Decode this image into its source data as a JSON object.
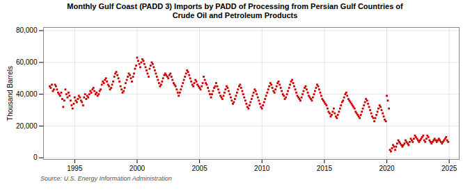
{
  "chart_data": {
    "type": "scatter",
    "title": "Monthly Gulf Coast (PADD 3) Imports by PADD of Processing from Persian Gulf Countries of\nCrude Oil and Petroleum Products",
    "ylabel": "Thousand Barrels",
    "annotations": [
      "Source: U.S. Energy Information Administration"
    ],
    "color": "#CC0000",
    "marker": "square",
    "grid": true,
    "xlim": [
      1992.5,
      2025.8
    ],
    "ylim": [
      -1000,
      82000
    ],
    "xticks": [
      1995,
      2000,
      2005,
      2010,
      2015,
      2020,
      2025
    ],
    "yticks": [
      0,
      {
        "value": 20000,
        "label": "20,000"
      },
      {
        "value": 40000,
        "label": "40,000"
      },
      {
        "value": 60000,
        "label": "60,000"
      },
      {
        "value": 80000,
        "label": "80,000"
      }
    ],
    "x": [
      1993.0,
      1993.08,
      1993.17,
      1993.25,
      1993.33,
      1993.42,
      1993.5,
      1993.58,
      1993.67,
      1993.75,
      1993.83,
      1993.92,
      1994.0,
      1994.08,
      1994.17,
      1994.25,
      1994.33,
      1994.42,
      1994.5,
      1994.58,
      1994.67,
      1994.75,
      1994.83,
      1994.92,
      1995.0,
      1995.08,
      1995.17,
      1995.25,
      1995.33,
      1995.42,
      1995.5,
      1995.58,
      1995.67,
      1995.75,
      1995.83,
      1995.92,
      1996.0,
      1996.08,
      1996.17,
      1996.25,
      1996.33,
      1996.42,
      1996.5,
      1996.58,
      1996.67,
      1996.75,
      1996.83,
      1996.92,
      1997.0,
      1997.08,
      1997.17,
      1997.25,
      1997.33,
      1997.42,
      1997.5,
      1997.58,
      1997.67,
      1997.75,
      1997.83,
      1997.92,
      1998.0,
      1998.08,
      1998.17,
      1998.25,
      1998.33,
      1998.42,
      1998.5,
      1998.58,
      1998.67,
      1998.75,
      1998.83,
      1998.92,
      1999.0,
      1999.08,
      1999.17,
      1999.25,
      1999.33,
      1999.42,
      1999.5,
      1999.58,
      1999.67,
      1999.75,
      1999.83,
      1999.92,
      2000.0,
      2000.08,
      2000.17,
      2000.25,
      2000.33,
      2000.42,
      2000.5,
      2000.58,
      2000.67,
      2000.75,
      2000.83,
      2000.92,
      2001.0,
      2001.08,
      2001.17,
      2001.25,
      2001.33,
      2001.42,
      2001.5,
      2001.58,
      2001.67,
      2001.75,
      2001.83,
      2001.92,
      2002.0,
      2002.08,
      2002.17,
      2002.25,
      2002.33,
      2002.42,
      2002.5,
      2002.58,
      2002.67,
      2002.75,
      2002.83,
      2002.92,
      2003.0,
      2003.08,
      2003.17,
      2003.25,
      2003.33,
      2003.42,
      2003.5,
      2003.58,
      2003.67,
      2003.75,
      2003.83,
      2003.92,
      2004.0,
      2004.08,
      2004.17,
      2004.25,
      2004.33,
      2004.42,
      2004.5,
      2004.58,
      2004.67,
      2004.75,
      2004.83,
      2004.92,
      2005.0,
      2005.08,
      2005.17,
      2005.25,
      2005.33,
      2005.42,
      2005.5,
      2005.58,
      2005.67,
      2005.75,
      2005.83,
      2005.92,
      2006.0,
      2006.08,
      2006.17,
      2006.25,
      2006.33,
      2006.42,
      2006.5,
      2006.58,
      2006.67,
      2006.75,
      2006.83,
      2006.92,
      2007.0,
      2007.08,
      2007.17,
      2007.25,
      2007.33,
      2007.42,
      2007.5,
      2007.58,
      2007.67,
      2007.75,
      2007.83,
      2007.92,
      2008.0,
      2008.08,
      2008.17,
      2008.25,
      2008.33,
      2008.42,
      2008.5,
      2008.58,
      2008.67,
      2008.75,
      2008.83,
      2008.92,
      2009.0,
      2009.08,
      2009.17,
      2009.25,
      2009.33,
      2009.42,
      2009.5,
      2009.58,
      2009.67,
      2009.75,
      2009.83,
      2009.92,
      2010.0,
      2010.08,
      2010.17,
      2010.25,
      2010.33,
      2010.42,
      2010.5,
      2010.58,
      2010.67,
      2010.75,
      2010.83,
      2010.92,
      2011.0,
      2011.08,
      2011.17,
      2011.25,
      2011.33,
      2011.42,
      2011.5,
      2011.58,
      2011.67,
      2011.75,
      2011.83,
      2011.92,
      2012.0,
      2012.08,
      2012.17,
      2012.25,
      2012.33,
      2012.42,
      2012.5,
      2012.58,
      2012.67,
      2012.75,
      2012.83,
      2012.92,
      2013.0,
      2013.08,
      2013.17,
      2013.25,
      2013.33,
      2013.42,
      2013.5,
      2013.58,
      2013.67,
      2013.75,
      2013.83,
      2013.92,
      2014.0,
      2014.08,
      2014.17,
      2014.25,
      2014.33,
      2014.42,
      2014.5,
      2014.58,
      2014.67,
      2014.75,
      2014.83,
      2014.92,
      2015.0,
      2015.08,
      2015.17,
      2015.25,
      2015.33,
      2015.42,
      2015.5,
      2015.58,
      2015.67,
      2015.75,
      2015.83,
      2015.92,
      2016.0,
      2016.08,
      2016.17,
      2016.25,
      2016.33,
      2016.42,
      2016.5,
      2016.58,
      2016.67,
      2016.75,
      2016.83,
      2016.92,
      2017.0,
      2017.08,
      2017.17,
      2017.25,
      2017.33,
      2017.42,
      2017.5,
      2017.58,
      2017.67,
      2017.75,
      2017.83,
      2017.92,
      2018.0,
      2018.08,
      2018.17,
      2018.25,
      2018.33,
      2018.42,
      2018.5,
      2018.58,
      2018.67,
      2018.75,
      2018.83,
      2018.92,
      2019.0,
      2019.08,
      2019.17,
      2019.25,
      2019.33,
      2019.42,
      2019.5,
      2019.58,
      2019.67,
      2019.75,
      2019.83,
      2019.92,
      2020.0,
      2020.08,
      2020.17,
      2020.25,
      2020.33,
      2020.42,
      2020.5,
      2020.58,
      2020.67,
      2020.75,
      2020.83,
      2020.92,
      2021.0,
      2021.08,
      2021.17,
      2021.25,
      2021.33,
      2021.42,
      2021.5,
      2021.58,
      2021.67,
      2021.75,
      2021.83,
      2021.92,
      2022.0,
      2022.08,
      2022.17,
      2022.25,
      2022.33,
      2022.42,
      2022.5,
      2022.58,
      2022.67,
      2022.75,
      2022.83,
      2022.92,
      2023.0,
      2023.08,
      2023.17,
      2023.25,
      2023.33,
      2023.42,
      2023.5,
      2023.58,
      2023.67,
      2023.75,
      2023.83,
      2023.92,
      2024.0,
      2024.08,
      2024.17,
      2024.25,
      2024.33,
      2024.42,
      2024.5,
      2024.58,
      2024.67,
      2024.75,
      2024.83,
      2024.92
    ],
    "values": [
      45000,
      44000,
      46000,
      42000,
      43000,
      46000,
      45000,
      43000,
      41000,
      40000,
      39000,
      41000,
      37000,
      32000,
      36000,
      43000,
      40000,
      38000,
      41000,
      39000,
      36000,
      33000,
      31000,
      34000,
      38000,
      36000,
      35000,
      37000,
      39000,
      38000,
      36000,
      35000,
      33000,
      38000,
      40000,
      37000,
      39000,
      38000,
      40000,
      42000,
      41000,
      43000,
      44000,
      42000,
      40000,
      41000,
      39000,
      40000,
      42000,
      43000,
      46000,
      48000,
      47000,
      49000,
      50000,
      48000,
      46000,
      45000,
      43000,
      44000,
      46000,
      48000,
      51000,
      53000,
      54000,
      52000,
      50000,
      48000,
      45000,
      43000,
      41000,
      42000,
      44000,
      47000,
      49000,
      51000,
      53000,
      52000,
      50000,
      48000,
      51000,
      53000,
      56000,
      58000,
      63000,
      61000,
      59000,
      57000,
      60000,
      62000,
      61000,
      59000,
      57000,
      55000,
      53000,
      51000,
      56000,
      58000,
      60000,
      59000,
      57000,
      55000,
      53000,
      51000,
      49000,
      47000,
      45000,
      46000,
      48000,
      50000,
      52000,
      53000,
      52000,
      51000,
      50000,
      52000,
      53000,
      51000,
      49000,
      47000,
      46000,
      45000,
      43000,
      41000,
      39000,
      41000,
      43000,
      45000,
      47000,
      49000,
      51000,
      53000,
      55000,
      54000,
      52000,
      50000,
      48000,
      46000,
      45000,
      47000,
      49000,
      48000,
      46000,
      45000,
      44000,
      43000,
      45000,
      47000,
      51000,
      49000,
      47000,
      46000,
      44000,
      42000,
      40000,
      38000,
      40000,
      42000,
      44000,
      45000,
      47000,
      45000,
      43000,
      41000,
      39000,
      38000,
      37000,
      39000,
      41000,
      43000,
      45000,
      44000,
      42000,
      40000,
      38000,
      36000,
      34000,
      35000,
      37000,
      39000,
      41000,
      43000,
      45000,
      46000,
      44000,
      42000,
      40000,
      38000,
      36000,
      34000,
      32000,
      31000,
      33000,
      35000,
      37000,
      39000,
      41000,
      43000,
      42000,
      40000,
      38000,
      36000,
      34000,
      32000,
      31000,
      33000,
      35000,
      37000,
      39000,
      41000,
      43000,
      45000,
      47000,
      46000,
      44000,
      42000,
      41000,
      43000,
      45000,
      47000,
      48000,
      46000,
      44000,
      42000,
      40000,
      39000,
      37000,
      38000,
      40000,
      42000,
      44000,
      46000,
      48000,
      49000,
      47000,
      45000,
      43000,
      41000,
      39000,
      38000,
      37000,
      36000,
      38000,
      40000,
      42000,
      44000,
      45000,
      43000,
      41000,
      39000,
      38000,
      37000,
      36000,
      38000,
      40000,
      42000,
      44000,
      46000,
      45000,
      43000,
      41000,
      39000,
      37000,
      36000,
      35000,
      34000,
      33000,
      31000,
      29000,
      28000,
      26000,
      27000,
      29000,
      31000,
      28000,
      26000,
      25000,
      27000,
      29000,
      31000,
      33000,
      35000,
      36000,
      38000,
      40000,
      41000,
      39000,
      37000,
      36000,
      35000,
      34000,
      33000,
      32000,
      31000,
      29000,
      28000,
      27000,
      26000,
      25000,
      27000,
      29000,
      31000,
      33000,
      35000,
      37000,
      36000,
      34000,
      32000,
      30000,
      28000,
      26000,
      25000,
      23000,
      25000,
      27000,
      29000,
      31000,
      33000,
      32000,
      30000,
      28000,
      26000,
      24000,
      23000,
      39000,
      36000,
      31000,
      5000,
      4000,
      6000,
      8000,
      7000,
      5000,
      7000,
      9000,
      11000,
      10000,
      9000,
      8000,
      7000,
      8000,
      9000,
      11000,
      10000,
      9000,
      8000,
      10000,
      12000,
      11000,
      10000,
      12000,
      14000,
      13000,
      12000,
      11000,
      10000,
      11000,
      12000,
      13000,
      14000,
      11000,
      10000,
      12000,
      14000,
      13000,
      11000,
      10000,
      9000,
      10000,
      11000,
      12000,
      11000,
      10000,
      11000,
      12000,
      11000,
      10000,
      9000,
      10000,
      11000,
      12000,
      13000,
      11000,
      10000
    ]
  }
}
